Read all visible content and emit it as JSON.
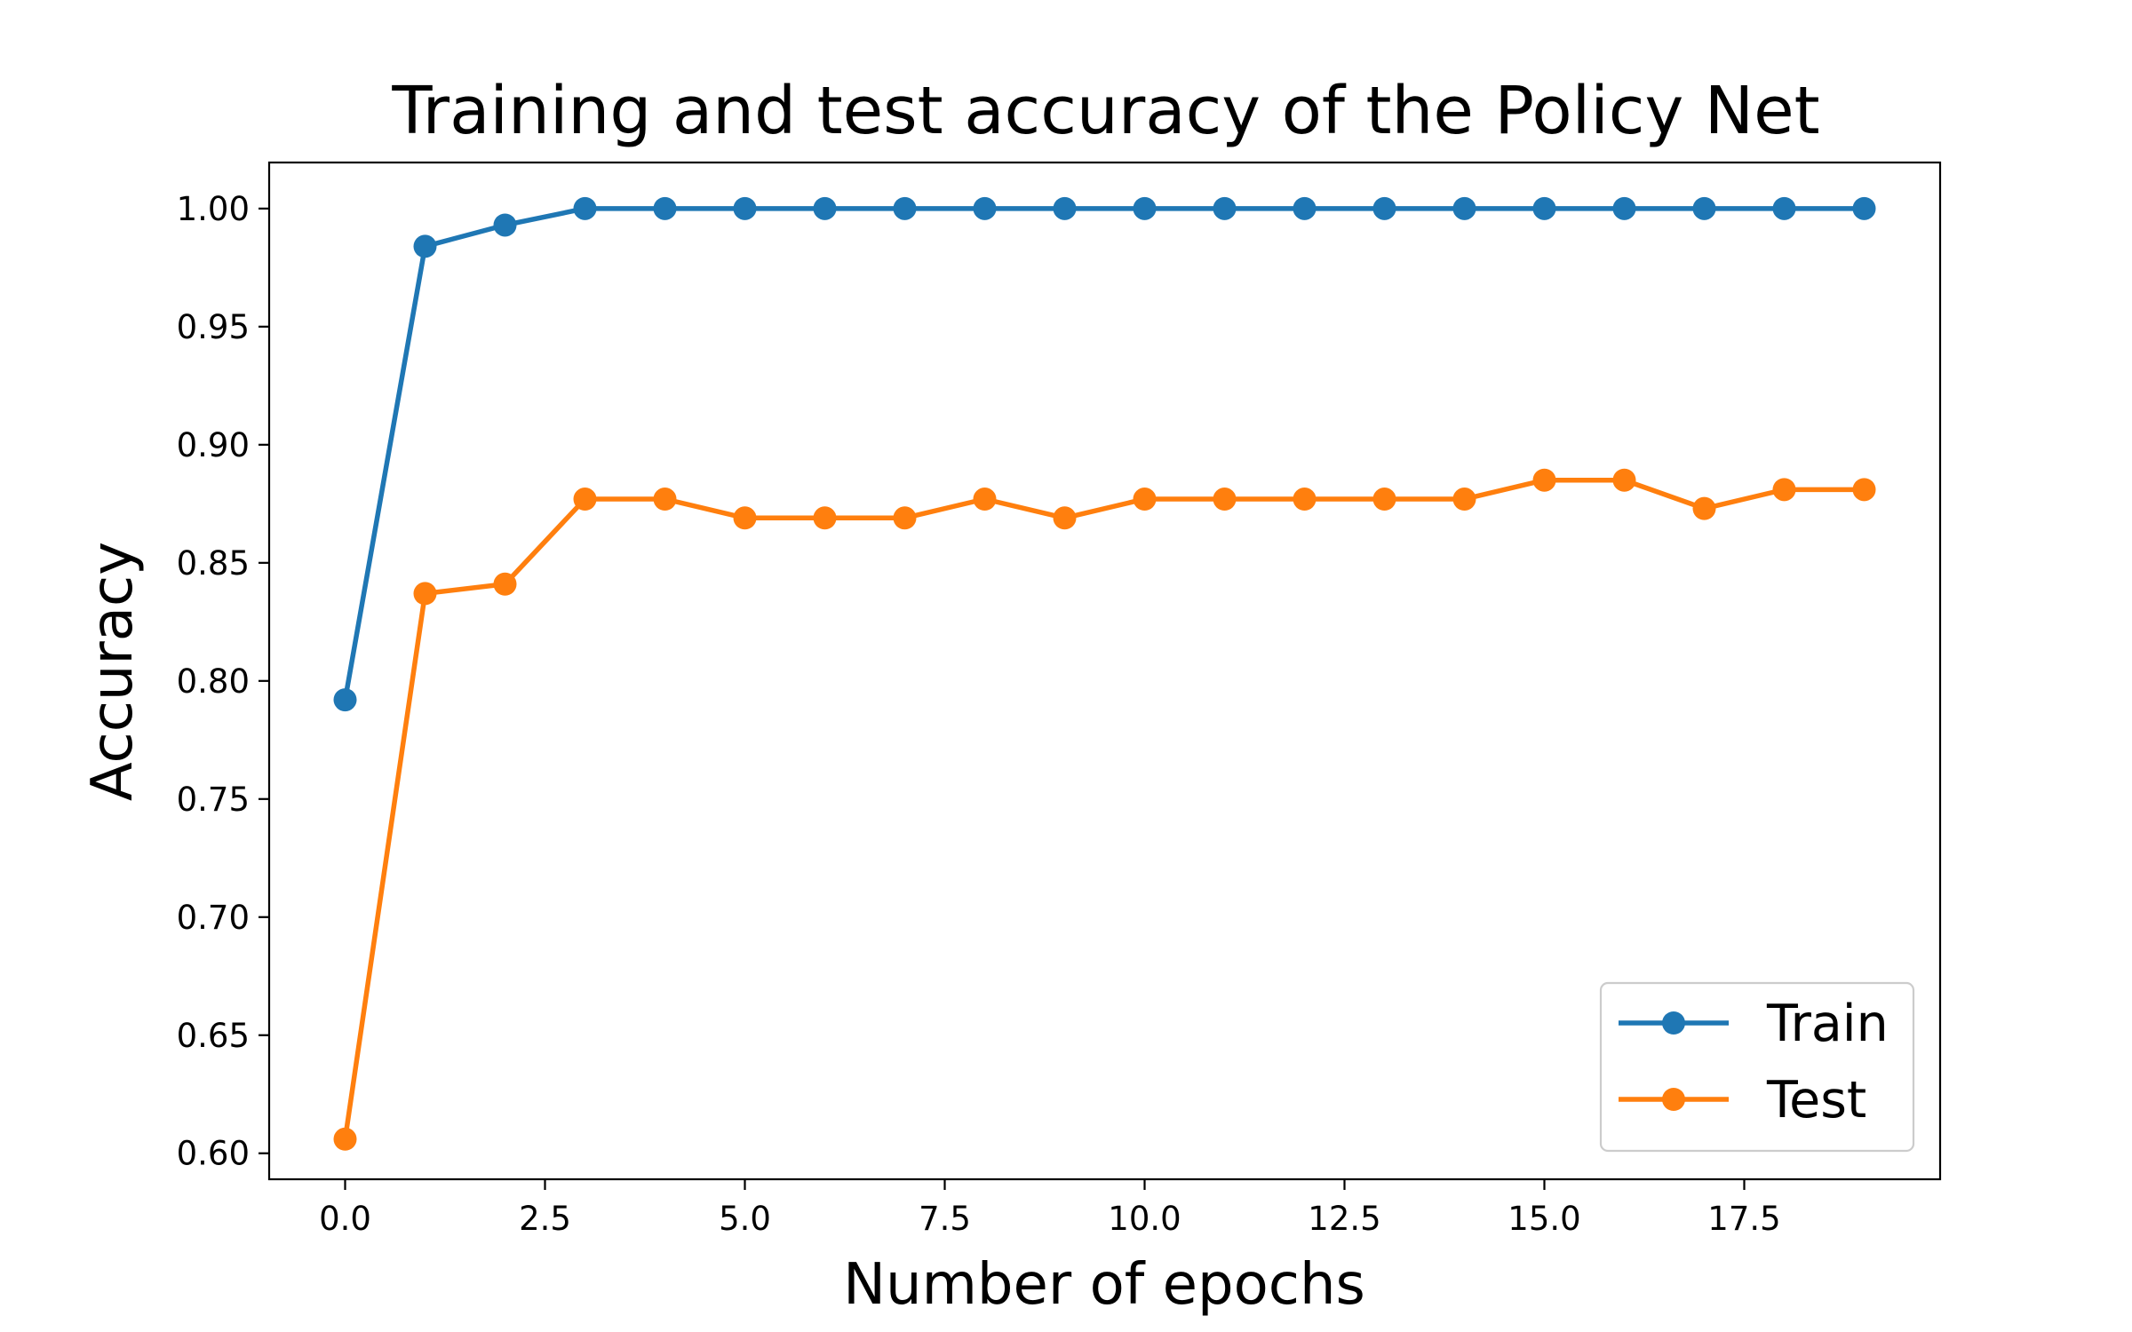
{
  "chart_data": {
    "type": "line",
    "title": "Training and test accuracy of the Policy Net",
    "xlabel": "Number of epochs",
    "ylabel": "Accuracy",
    "xlim": [
      -0.95,
      19.95
    ],
    "ylim": [
      0.589,
      1.0195
    ],
    "xticks": [
      0,
      2.5,
      5,
      7.5,
      10,
      12.5,
      15,
      17.5
    ],
    "xtick_labels": [
      "0.0",
      "2.5",
      "5.0",
      "7.5",
      "10.0",
      "12.5",
      "15.0",
      "17.5"
    ],
    "yticks": [
      0.6,
      0.65,
      0.7,
      0.75,
      0.8,
      0.85,
      0.9,
      0.95,
      1.0
    ],
    "ytick_labels": [
      "0.60",
      "0.65",
      "0.70",
      "0.75",
      "0.80",
      "0.85",
      "0.90",
      "0.95",
      "1.00"
    ],
    "grid": false,
    "legend_position": "lower-right",
    "x": [
      0,
      1,
      2,
      3,
      4,
      5,
      6,
      7,
      8,
      9,
      10,
      11,
      12,
      13,
      14,
      15,
      16,
      17,
      18,
      19
    ],
    "series": [
      {
        "name": "Train",
        "color": "#1f77b4",
        "values": [
          0.792,
          0.984,
          0.993,
          1.0,
          1.0,
          1.0,
          1.0,
          1.0,
          1.0,
          1.0,
          1.0,
          1.0,
          1.0,
          1.0,
          1.0,
          1.0,
          1.0,
          1.0,
          1.0,
          1.0
        ]
      },
      {
        "name": "Test",
        "color": "#ff7f0e",
        "values": [
          0.606,
          0.837,
          0.841,
          0.877,
          0.877,
          0.869,
          0.869,
          0.869,
          0.877,
          0.869,
          0.877,
          0.877,
          0.877,
          0.877,
          0.877,
          0.885,
          0.885,
          0.873,
          0.881,
          0.881
        ]
      }
    ]
  }
}
